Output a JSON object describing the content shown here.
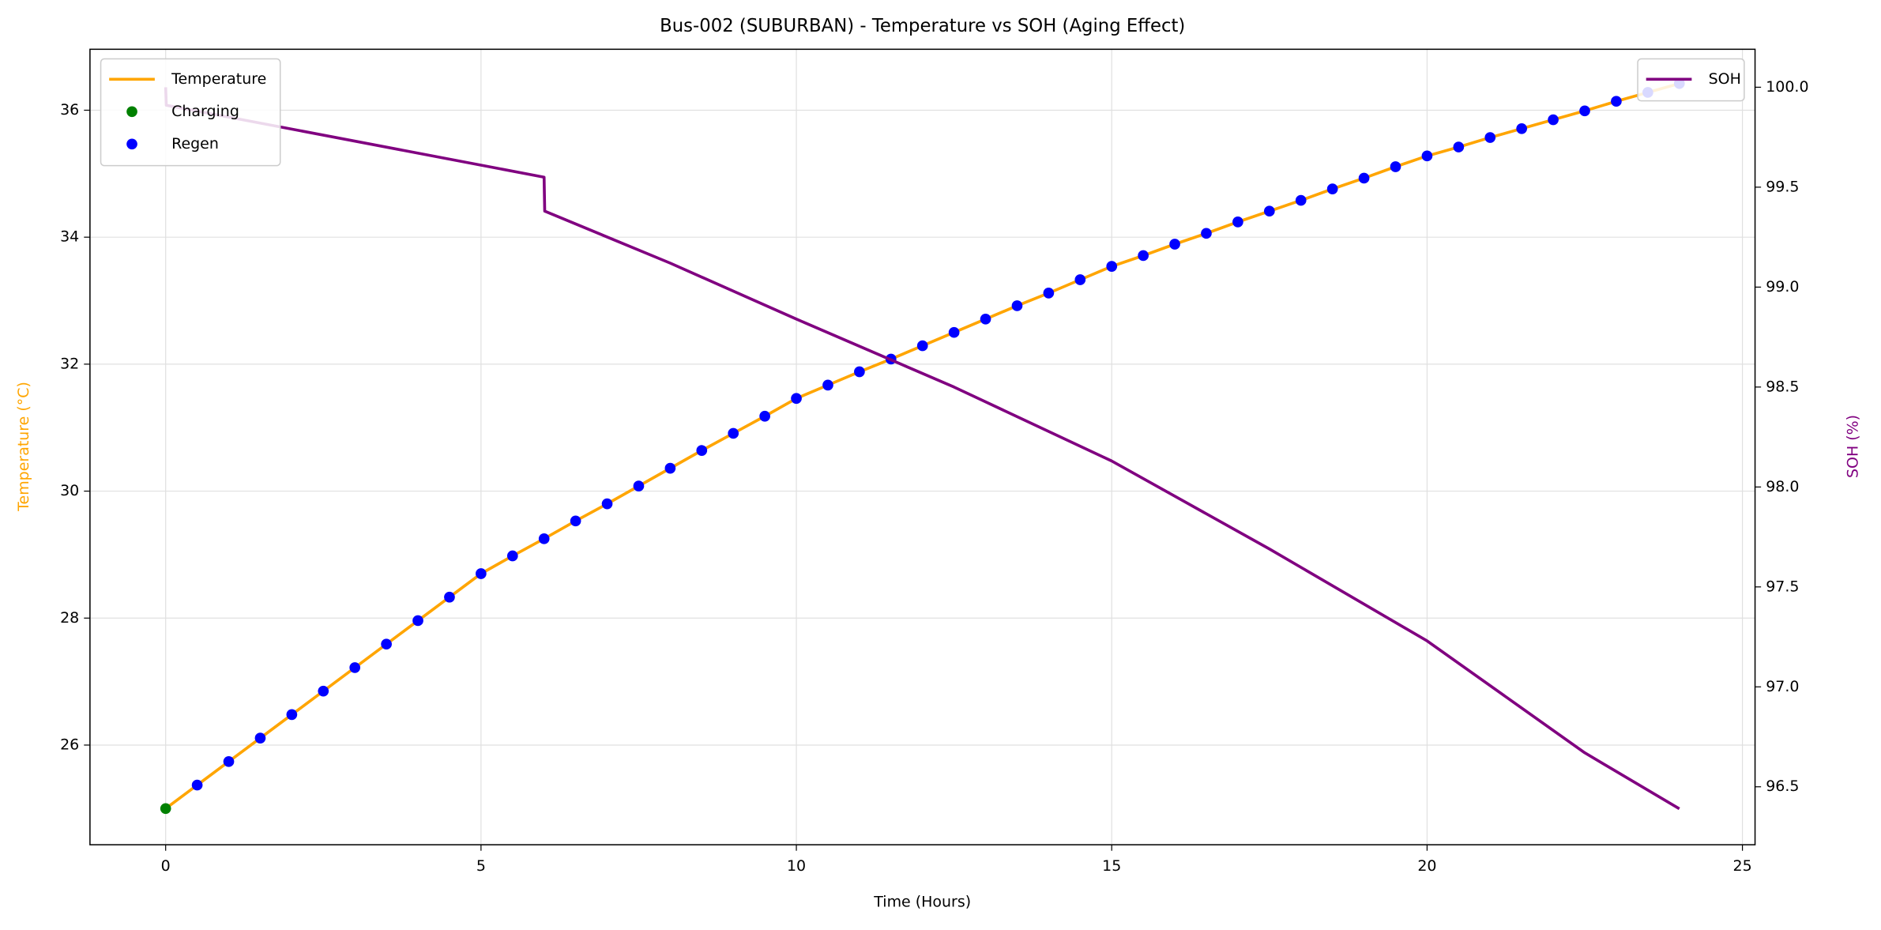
{
  "chart_data": {
    "type": "line",
    "title": "Bus-002 (SUBURBAN) - Temperature vs SOH (Aging Effect)",
    "x_label": "Time (Hours)",
    "y_label": "Temperature (°C)",
    "y2_label": "SOH (%)",
    "y_label_color": "orange",
    "y2_label_color": "purple",
    "xlim": [
      -1.2,
      25.2
    ],
    "xticks": [
      0,
      5,
      10,
      15,
      20,
      25
    ],
    "ylim": [
      24.43,
      36.96
    ],
    "yticks": [
      26,
      28,
      30,
      32,
      34,
      36
    ],
    "y2lim": [
      96.21,
      100.19
    ],
    "y2ticks": [
      {
        "value": 96.5,
        "label": "96.5"
      },
      {
        "value": 97,
        "label": "97.0"
      },
      97.5,
      {
        "value": 98,
        "label": "98.0"
      },
      98.5,
      {
        "value": 99,
        "label": "99.0"
      },
      99.5,
      {
        "value": 100,
        "label": "100.0"
      }
    ],
    "grid": true,
    "legend": "upper left",
    "legend2": "upper right",
    "series": [
      {
        "name": "Temperature",
        "color": "orange",
        "type": "line",
        "x": [
          0,
          0.5,
          1,
          1.5,
          2,
          2.5,
          3,
          3.5,
          4,
          4.5,
          5,
          5.5,
          6,
          6.5,
          7,
          7.5,
          8,
          8.5,
          9,
          9.5,
          10,
          10.5,
          11,
          11.5,
          12,
          12.5,
          13,
          13.5,
          14,
          14.5,
          15,
          15.5,
          16,
          16.5,
          17,
          17.5,
          18,
          18.5,
          19,
          19.5,
          20,
          20.5,
          21,
          21.5,
          22,
          22.5,
          23,
          23.5,
          24
        ],
        "values": [
          25.0,
          25.37,
          25.74,
          26.11,
          26.48,
          26.85,
          27.22,
          27.59,
          27.96,
          28.33,
          28.7,
          28.98,
          29.25,
          29.53,
          29.8,
          30.08,
          30.36,
          30.64,
          30.91,
          31.18,
          31.46,
          31.67,
          31.88,
          32.08,
          32.29,
          32.5,
          32.71,
          32.92,
          33.12,
          33.33,
          33.54,
          33.71,
          33.89,
          34.06,
          34.24,
          34.41,
          34.58,
          34.76,
          34.93,
          35.11,
          35.28,
          35.42,
          35.57,
          35.71,
          35.85,
          35.99,
          36.14,
          36.28,
          36.42
        ]
      },
      {
        "name": "Charging",
        "color": "green",
        "type": "scatter",
        "x": [
          0
        ],
        "values": [
          25.0
        ]
      },
      {
        "name": "Regen",
        "color": "blue",
        "type": "scatter",
        "x": [
          0.5,
          1,
          1.5,
          2,
          2.5,
          3,
          3.5,
          4,
          4.5,
          5,
          5.5,
          6,
          6.5,
          7,
          7.5,
          8,
          8.5,
          9,
          9.5,
          10,
          10.5,
          11,
          11.5,
          12,
          12.5,
          13,
          13.5,
          14,
          14.5,
          15,
          15.5,
          16,
          16.5,
          17,
          17.5,
          18,
          18.5,
          19,
          19.5,
          20,
          20.5,
          21,
          21.5,
          22,
          22.5,
          23,
          23.5,
          24
        ],
        "values": [
          25.37,
          25.74,
          26.11,
          26.48,
          26.85,
          27.22,
          27.59,
          27.96,
          28.33,
          28.7,
          28.98,
          29.25,
          29.53,
          29.8,
          30.08,
          30.36,
          30.64,
          30.91,
          31.18,
          31.46,
          31.67,
          31.88,
          32.08,
          32.29,
          32.5,
          32.71,
          32.92,
          33.12,
          33.33,
          33.54,
          33.71,
          33.89,
          34.06,
          34.24,
          34.41,
          34.58,
          34.76,
          34.93,
          35.11,
          35.28,
          35.42,
          35.57,
          35.71,
          35.85,
          35.99,
          36.14,
          36.28,
          36.42
        ]
      },
      {
        "name": "SOH",
        "color": "purple",
        "type": "line",
        "axis": "y2",
        "x": [
          0,
          0.01,
          6,
          6.01,
          8,
          10,
          12.5,
          15,
          17.5,
          20,
          22.5,
          24
        ],
        "values": [
          100.0,
          99.91,
          99.55,
          99.38,
          99.12,
          98.84,
          98.5,
          98.13,
          97.69,
          97.23,
          96.67,
          96.39
        ]
      }
    ]
  }
}
